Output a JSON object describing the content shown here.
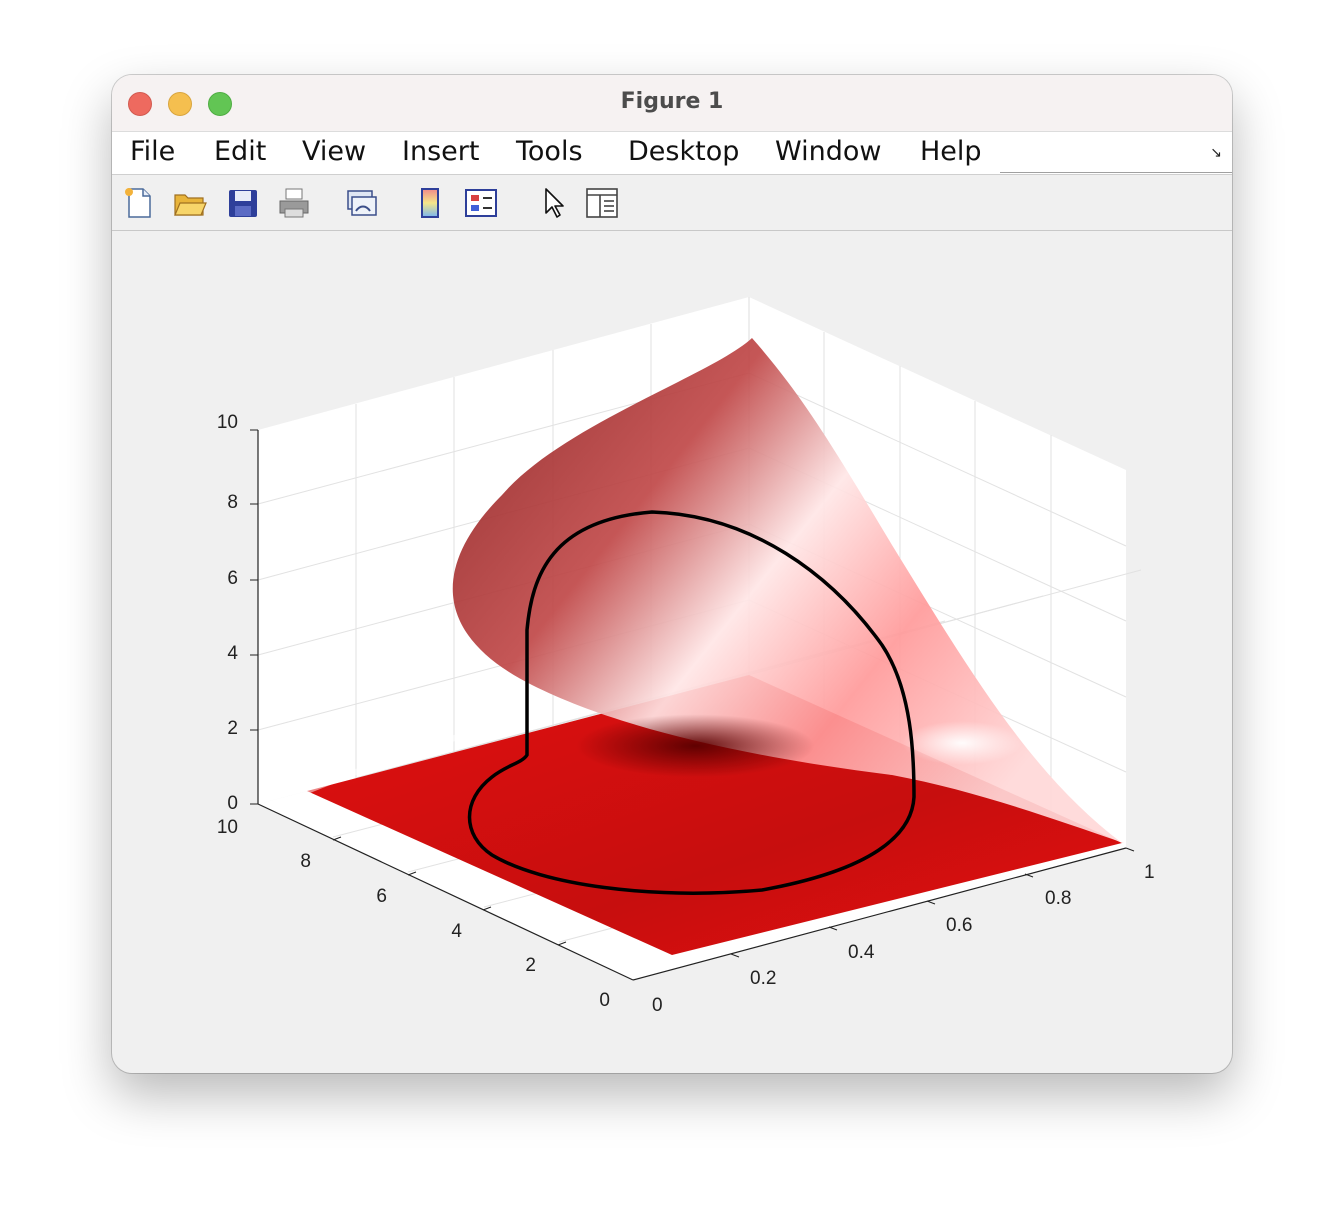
{
  "window": {
    "title": "Figure 1"
  },
  "menu": {
    "items": [
      "File",
      "Edit",
      "View",
      "Insert",
      "Tools",
      "Desktop",
      "Window",
      "Help"
    ]
  },
  "toolbar": {
    "icons": [
      "new-figure-icon",
      "open-file-icon",
      "save-icon",
      "print-icon",
      "link-plot-icon",
      "insert-colorbar-icon",
      "insert-legend-icon",
      "edit-plot-pointer-icon",
      "property-inspector-icon"
    ]
  },
  "colors": {
    "surface": "#e00000",
    "curve": "#000000",
    "axes_background": "#ffffff",
    "figure_background": "#f0f0f0"
  },
  "chart_data": {
    "type": "surface",
    "title": "",
    "xlabel": "",
    "ylabel": "",
    "zlabel": "",
    "xlim": [
      0,
      1
    ],
    "ylim": [
      0,
      10
    ],
    "zlim": [
      0,
      10
    ],
    "xticks": [
      "0",
      "0.2",
      "0.4",
      "0.6",
      "0.8",
      "1"
    ],
    "yticks": [
      "0",
      "2",
      "4",
      "6",
      "8",
      "10"
    ],
    "zticks": [
      "0",
      "2",
      "4",
      "6",
      "8",
      "10"
    ],
    "grid": true,
    "surface_color": "red",
    "curve": "closed black outline (heart shape) drawn on the surface"
  }
}
